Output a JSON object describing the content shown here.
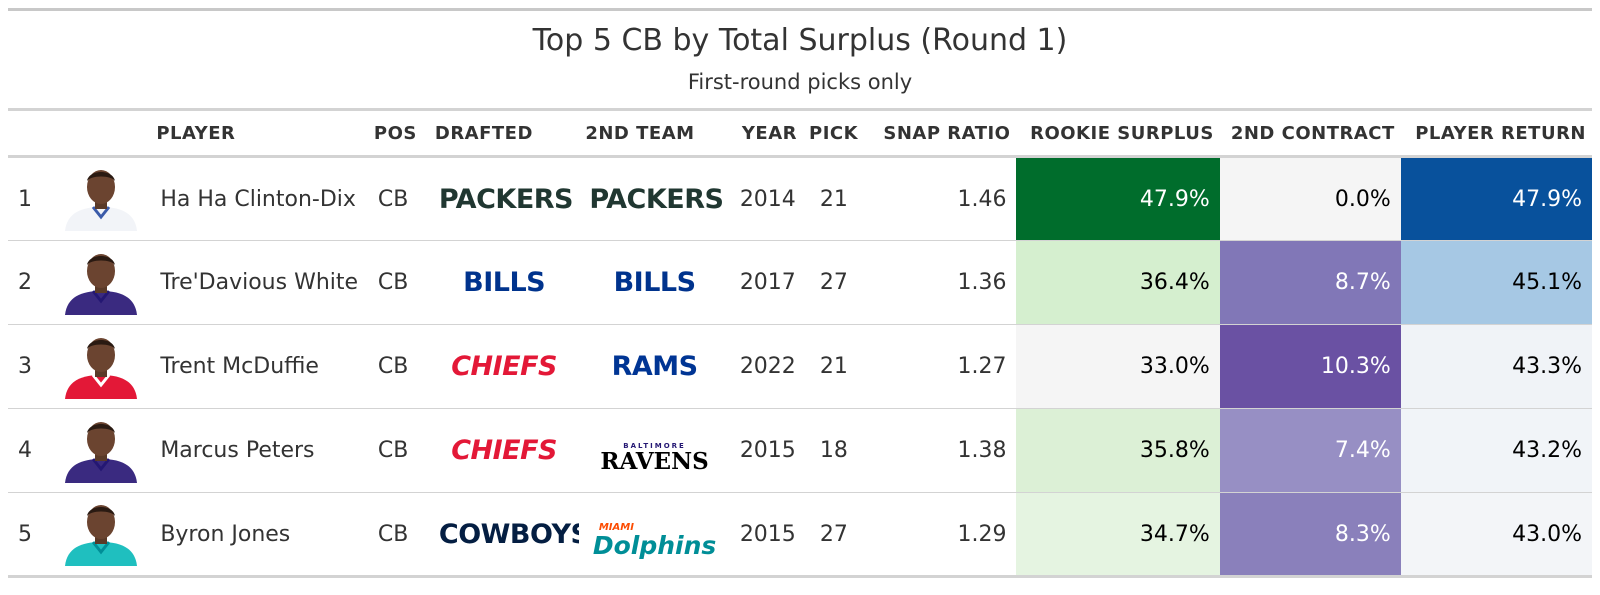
{
  "title": "Top 5 CB by Total Surplus (Round 1)",
  "subtitle": "First-round picks only",
  "columns": [
    "",
    "",
    "PLAYER",
    "POS",
    "DRAFTED",
    "2ND TEAM",
    "YEAR",
    "PICK",
    "SNAP RATIO",
    "ROOKIE SURPLUS",
    "2ND CONTRACT",
    "PLAYER RETURN"
  ],
  "rows": [
    {
      "rank": "1",
      "headshot_jersey": "#f2f4f8",
      "headshot_trim": "#3b5ba9",
      "player": "Ha Ha Clinton-Dix",
      "pos": "CB",
      "drafted": {
        "text": "PACKERS",
        "color": "#203731"
      },
      "second_team": {
        "text": "PACKERS",
        "color": "#203731"
      },
      "year": "2014",
      "pick": "21",
      "snap_ratio": "1.46",
      "rookie_surplus": "47.9%",
      "rookie_bg": "#006d2c",
      "rookie_fg": "#ffffff",
      "second_contract": "0.0%",
      "contract_bg": "#f5f5f5",
      "contract_fg": "#000000",
      "player_return": "47.9%",
      "return_bg": "#08519c",
      "return_fg": "#ffffff"
    },
    {
      "rank": "2",
      "headshot_jersey": "#3a2a80",
      "headshot_trim": "#241773",
      "player": "Tre'Davious White",
      "pos": "CB",
      "drafted": {
        "text": "BILLS",
        "color": "#00338d"
      },
      "second_team": {
        "text": "BILLS",
        "color": "#00338d"
      },
      "year": "2017",
      "pick": "27",
      "snap_ratio": "1.36",
      "rookie_surplus": "36.4%",
      "rookie_bg": "#d5efcf",
      "rookie_fg": "#000000",
      "second_contract": "8.7%",
      "contract_bg": "#8177b7",
      "contract_fg": "#ffffff",
      "player_return": "45.1%",
      "return_bg": "#a6c8e4",
      "return_fg": "#000000"
    },
    {
      "rank": "3",
      "headshot_jersey": "#e31837",
      "headshot_trim": "#ffffff",
      "player": "Trent McDuffie",
      "pos": "CB",
      "drafted": {
        "text": "CHIEFS",
        "color": "#e31837"
      },
      "second_team": {
        "text": "RAMS",
        "color": "#003594"
      },
      "year": "2022",
      "pick": "21",
      "snap_ratio": "1.27",
      "rookie_surplus": "33.0%",
      "rookie_bg": "#f5f5f5",
      "rookie_fg": "#000000",
      "second_contract": "10.3%",
      "contract_bg": "#6a51a3",
      "contract_fg": "#ffffff",
      "player_return": "43.3%",
      "return_bg": "#f0f3f7",
      "return_fg": "#000000"
    },
    {
      "rank": "4",
      "headshot_jersey": "#3a2a80",
      "headshot_trim": "#241773",
      "player": "Marcus Peters",
      "pos": "CB",
      "drafted": {
        "text": "CHIEFS",
        "color": "#e31837"
      },
      "second_team": {
        "text": "RAVENS",
        "small": "BALTIMORE",
        "color": "#000000"
      },
      "year": "2015",
      "pick": "18",
      "snap_ratio": "1.38",
      "rookie_surplus": "35.8%",
      "rookie_bg": "#dcf0d6",
      "rookie_fg": "#000000",
      "second_contract": "7.4%",
      "contract_bg": "#978fc4",
      "contract_fg": "#ffffff",
      "player_return": "43.2%",
      "return_bg": "#f1f4f8",
      "return_fg": "#000000"
    },
    {
      "rank": "5",
      "headshot_jersey": "#1fbfbf",
      "headshot_trim": "#008e97",
      "player": "Byron Jones",
      "pos": "CB",
      "drafted": {
        "text": "COWBOYS",
        "color": "#041e42"
      },
      "second_team": {
        "text": "Dolphins",
        "small": "MIAMI",
        "color": "#008e97"
      },
      "year": "2015",
      "pick": "27",
      "snap_ratio": "1.29",
      "rookie_surplus": "34.7%",
      "rookie_bg": "#e5f4e1",
      "rookie_fg": "#000000",
      "second_contract": "8.3%",
      "contract_bg": "#8a80bb",
      "contract_fg": "#ffffff",
      "player_return": "43.0%",
      "return_bg": "#f3f5f8",
      "return_fg": "#000000"
    }
  ]
}
